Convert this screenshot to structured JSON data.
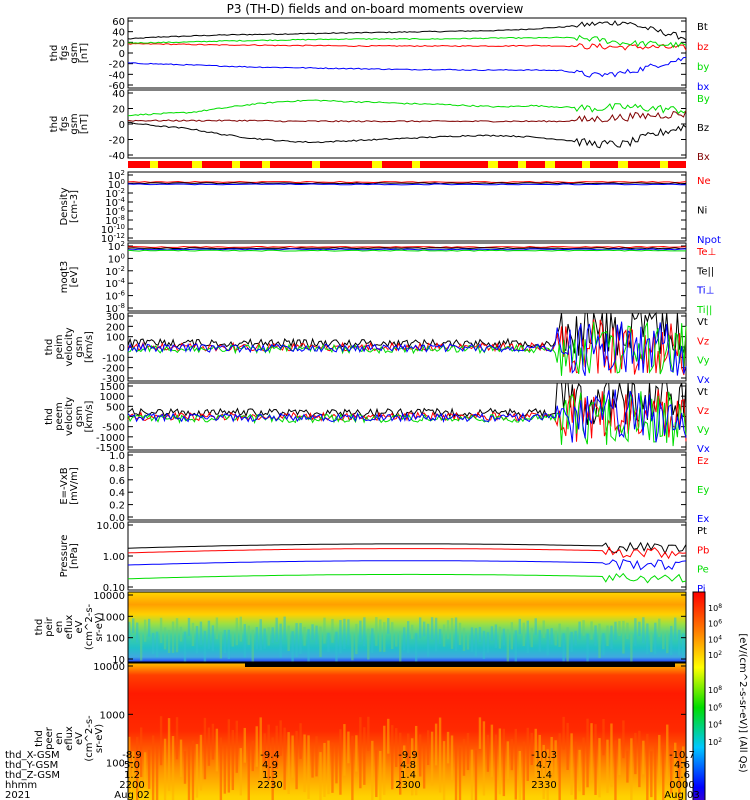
{
  "title": "P3 (TH-D) fields and on-board moments overview",
  "colors": {
    "black": "#000000",
    "red": "#ff0000",
    "green": "#00dd00",
    "blue": "#0000ff"
  },
  "footer": {
    "rows": [
      {
        "label": "thd_X-GSM",
        "values": [
          "-8.9",
          "-9.4",
          "-9.9",
          "-10.3",
          "-10.7"
        ]
      },
      {
        "label": "thd_Y-GSM",
        "values": [
          "5.0",
          "4.9",
          "4.8",
          "4.7",
          "4.6"
        ]
      },
      {
        "label": "thd_Z-GSM",
        "values": [
          "1.2",
          "1.3",
          "1.4",
          "1.4",
          "1.6"
        ]
      },
      {
        "label": "hhmm",
        "values": [
          "2200",
          "2230",
          "2300",
          "2330",
          "0000"
        ]
      },
      {
        "label": "2021",
        "values": [
          "Aug 02",
          "",
          "",
          "",
          "Aug 03"
        ]
      }
    ]
  },
  "colorbar": {
    "label": "[eV/(cm^2-s-sr-eV)] (All Qs)",
    "ticks_top": [
      "10^8",
      "10^6",
      "10^4",
      "10^2"
    ],
    "ticks_bottom": [
      "10^8",
      "10^6",
      "10^4",
      "10^2"
    ]
  },
  "chart_data": [
    {
      "type": "line",
      "ylabel": [
        "thd",
        "fgs",
        "gsm",
        "[nT]"
      ],
      "ylim": [
        -70,
        70
      ],
      "yticks": [
        "60",
        "40",
        "20",
        "0",
        "-20",
        "-40",
        "-60"
      ],
      "series": [
        {
          "name": "Bt",
          "color": "#000000",
          "values": [
            28,
            32,
            34,
            36,
            37,
            38,
            39,
            40,
            41,
            42,
            43,
            44,
            45,
            48,
            52,
            58,
            62,
            45,
            30
          ]
        },
        {
          "name": "bz",
          "color": "#ff0000",
          "values": [
            18,
            18,
            17,
            16,
            16,
            15,
            15,
            14,
            14,
            14,
            14,
            14,
            14,
            15,
            14,
            13,
            12,
            12,
            10
          ]
        },
        {
          "name": "by",
          "color": "#00dd00",
          "values": [
            20,
            21,
            22,
            24,
            25,
            26,
            27,
            28,
            28,
            28,
            28,
            29,
            30,
            30,
            31,
            28,
            20,
            18,
            15
          ]
        },
        {
          "name": "bx",
          "color": "#0000ff",
          "values": [
            -20,
            -22,
            -24,
            -26,
            -28,
            -29,
            -30,
            -31,
            -32,
            -33,
            -33,
            -34,
            -34,
            -34,
            -35,
            -45,
            -40,
            -25,
            -10
          ]
        }
      ]
    },
    {
      "type": "line",
      "ylabel": [
        "thd",
        "fgs",
        "gsm",
        "[nT]"
      ],
      "ylim": [
        -55,
        45
      ],
      "yticks": [
        "40",
        "20",
        "0",
        "-20",
        "-40"
      ],
      "series": [
        {
          "name": "By",
          "color": "#00dd00",
          "values": [
            8,
            10,
            12,
            18,
            24,
            28,
            30,
            28,
            27,
            25,
            24,
            22,
            20,
            22,
            20,
            18,
            20,
            18,
            15
          ]
        },
        {
          "name": "Bz",
          "color": "#000000",
          "values": [
            -3,
            -8,
            -12,
            -20,
            -26,
            -30,
            -32,
            -30,
            -28,
            -26,
            -24,
            -22,
            -22,
            -24,
            -28,
            -34,
            -35,
            -20,
            -8
          ]
        },
        {
          "name": "Bx",
          "color": "#800000",
          "values": [
            0,
            0,
            0,
            0,
            0,
            -1,
            -1,
            -1,
            -1,
            -1,
            -1,
            -1,
            -1,
            -1,
            -1,
            2,
            5,
            8,
            10
          ]
        }
      ]
    },
    {
      "type": "line",
      "ylabel": [
        "Density",
        "[cm-3]"
      ],
      "ylim": [
        0,
        10
      ],
      "yticks": [
        "10^2",
        "10^0",
        "10^-2",
        "10^-4",
        "10^-6",
        "10^-8",
        "10^-10",
        "10^-12"
      ],
      "series": [
        {
          "name": "Ne",
          "color": "#ff0000",
          "values": [],
          "values_note": ""
        },
        {
          "name": "Ni",
          "color": "#000000",
          "values": []
        },
        {
          "name": "Npot",
          "color": "#0000ff",
          "values": []
        }
      ]
    },
    {
      "type": "line",
      "ylabel": [
        "moqt3",
        "[eV]"
      ],
      "ylim": [
        0,
        10
      ],
      "yticks": [
        "10^2",
        "10^0",
        "10^-2",
        "10^-4",
        "10^-6",
        "10^-8"
      ],
      "series": [
        {
          "name": "Te⊥",
          "color": "#ff0000",
          "values": []
        },
        {
          "name": "Te||",
          "color": "#000000",
          "values": []
        },
        {
          "name": "Ti⊥",
          "color": "#0000ff",
          "values": []
        },
        {
          "name": "Ti||",
          "color": "#00dd00",
          "values": []
        }
      ]
    },
    {
      "type": "line",
      "ylabel": [
        "thd",
        "peim",
        "velocity",
        "gsm",
        "[km/s]"
      ],
      "ylim": [
        -320,
        320
      ],
      "yticks": [
        "300",
        "200",
        "100",
        "0",
        "-100",
        "-200",
        "-300"
      ],
      "series": [
        {
          "name": "Vt",
          "color": "#000000",
          "values": []
        },
        {
          "name": "Vz",
          "color": "#ff0000",
          "values": []
        },
        {
          "name": "Vy",
          "color": "#00dd00",
          "values": []
        },
        {
          "name": "Vx",
          "color": "#0000ff",
          "values": []
        }
      ]
    },
    {
      "type": "line",
      "ylabel": [
        "thd",
        "peem",
        "velocity",
        "gsm",
        "[km/s]"
      ],
      "ylim": [
        -1500,
        1500
      ],
      "yticks": [
        "1500",
        "1000",
        "500",
        "0",
        "-500",
        "-1000",
        "-1500"
      ],
      "series": [
        {
          "name": "Vt",
          "color": "#000000",
          "values": []
        },
        {
          "name": "Vz",
          "color": "#ff0000",
          "values": []
        },
        {
          "name": "Vy",
          "color": "#00dd00",
          "values": []
        },
        {
          "name": "Vx",
          "color": "#0000ff",
          "values": []
        }
      ]
    },
    {
      "type": "line",
      "ylabel": [
        "E=-VxB",
        "[mV/m]"
      ],
      "ylim": [
        0,
        1
      ],
      "yticks": [
        "1.0",
        "0.8",
        "0.6",
        "0.4",
        "0.2",
        "0.0"
      ],
      "series": [
        {
          "name": "Ez",
          "color": "#ff0000",
          "values": []
        },
        {
          "name": "Ey",
          "color": "#00dd00",
          "values": []
        },
        {
          "name": "Ex",
          "color": "#0000ff",
          "values": []
        }
      ]
    },
    {
      "type": "line",
      "ylabel": [
        "Pressure",
        "[nPa]"
      ],
      "ylim": [
        0.05,
        10
      ],
      "yticks": [
        "10.00",
        "1.00",
        "0.10"
      ],
      "series": [
        {
          "name": "Pt",
          "color": "#000000",
          "values": []
        },
        {
          "name": "Pb",
          "color": "#ff0000",
          "values": []
        },
        {
          "name": "Pe",
          "color": "#00dd00",
          "values": []
        },
        {
          "name": "Pi",
          "color": "#0000ff",
          "values": []
        }
      ]
    },
    {
      "type": "heatmap",
      "ylabel": [
        "thd",
        "peir",
        "en",
        "eflux",
        "eV",
        "(cm^2-s-",
        "sr-eV)"
      ],
      "yticks": [
        "10000",
        "1000",
        "100",
        "10"
      ]
    },
    {
      "type": "heatmap",
      "ylabel": [
        "thd",
        "peer",
        "en",
        "eflux",
        "eV",
        "(cm^2-s-",
        "sr-eV)"
      ],
      "yticks": [
        "10000",
        "1000",
        "100",
        "10"
      ]
    }
  ]
}
